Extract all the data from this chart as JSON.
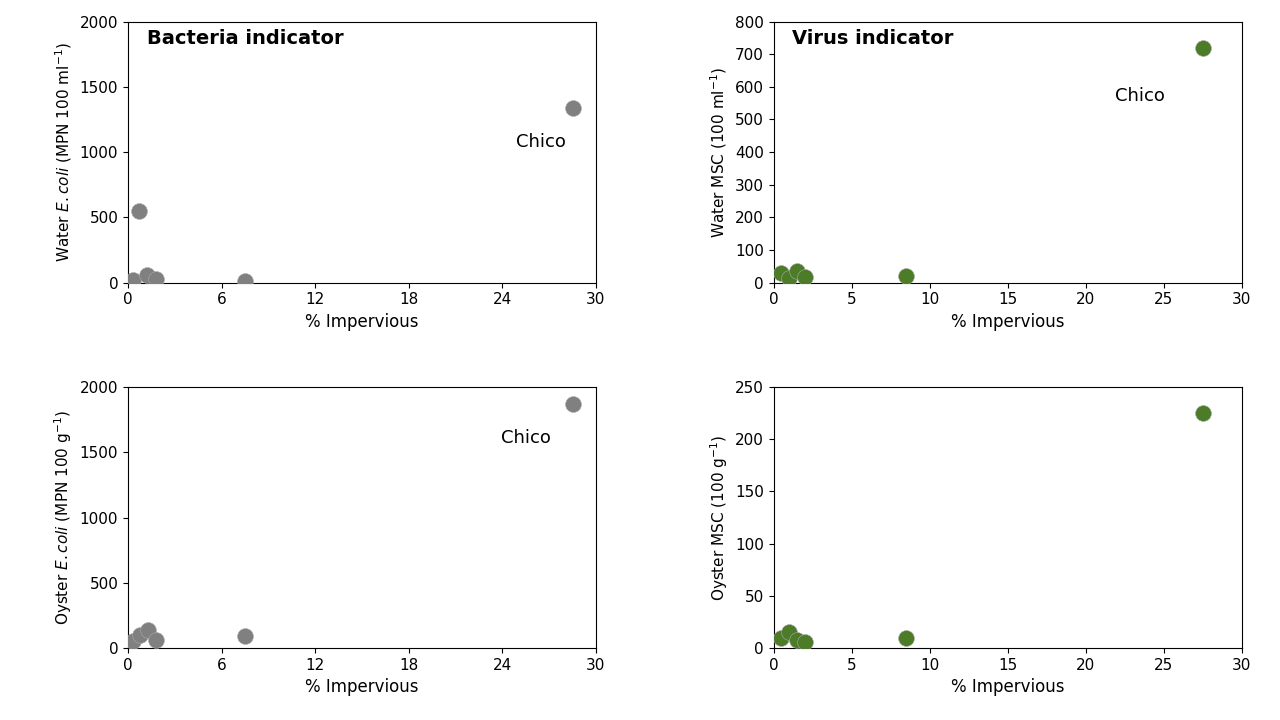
{
  "gray_color": "#808080",
  "green_color": "#4d7c28",
  "top_left": {
    "x": [
      0.3,
      0.7,
      1.2,
      1.8,
      7.5,
      28.5
    ],
    "y": [
      20,
      545,
      60,
      30,
      10,
      1340
    ],
    "xlabel": "% Impervious",
    "ylabel": "Water $\\it{E. coli}$ (MPN 100 ml$^{-1}$)",
    "ylim": [
      0,
      2000
    ],
    "yticks": [
      0,
      500,
      1000,
      1500,
      2000
    ],
    "xlim": [
      0,
      30
    ],
    "xticks": [
      0,
      6,
      12,
      18,
      24,
      30
    ],
    "chico_x": 26.5,
    "chico_y": 1150,
    "title": "Bacteria indicator"
  },
  "top_right": {
    "x": [
      0.5,
      1.0,
      1.5,
      2.0,
      8.5,
      27.5
    ],
    "y": [
      28,
      15,
      35,
      18,
      20,
      720
    ],
    "xlabel": "% Impervious",
    "ylabel": "Water MSC (100 ml$^{-1}$)",
    "ylim": [
      0,
      800
    ],
    "yticks": [
      0,
      100,
      200,
      300,
      400,
      500,
      600,
      700,
      800
    ],
    "xlim": [
      0,
      30
    ],
    "xticks": [
      0,
      5,
      10,
      15,
      20,
      25,
      30
    ],
    "chico_x": 23.5,
    "chico_y": 600,
    "title": "Virus indicator"
  },
  "bottom_left": {
    "x": [
      0.3,
      0.8,
      1.3,
      1.8,
      7.5,
      28.5
    ],
    "y": [
      50,
      100,
      140,
      60,
      90,
      1870
    ],
    "xlabel": "% Impervious",
    "ylabel": "Oyster $\\it{E. coli}$ (MPN 100 g$^{-1}$)",
    "ylim": [
      0,
      2000
    ],
    "yticks": [
      0,
      500,
      1000,
      1500,
      2000
    ],
    "xlim": [
      0,
      30
    ],
    "xticks": [
      0,
      6,
      12,
      18,
      24,
      30
    ],
    "chico_x": 25.5,
    "chico_y": 1680,
    "title": ""
  },
  "bottom_right": {
    "x": [
      0.5,
      1.0,
      1.5,
      2.0,
      8.5,
      27.5
    ],
    "y": [
      10,
      15,
      8,
      6,
      10,
      225
    ],
    "xlabel": "% Impervious",
    "ylabel": "Oyster MSC (100 g$^{-1}$)",
    "ylim": [
      0,
      250
    ],
    "yticks": [
      0,
      50,
      100,
      150,
      200,
      250
    ],
    "xlim": [
      0,
      30
    ],
    "xticks": [
      0,
      5,
      10,
      15,
      20,
      25,
      30
    ],
    "chico_x": 0,
    "chico_y": 0,
    "title": ""
  }
}
